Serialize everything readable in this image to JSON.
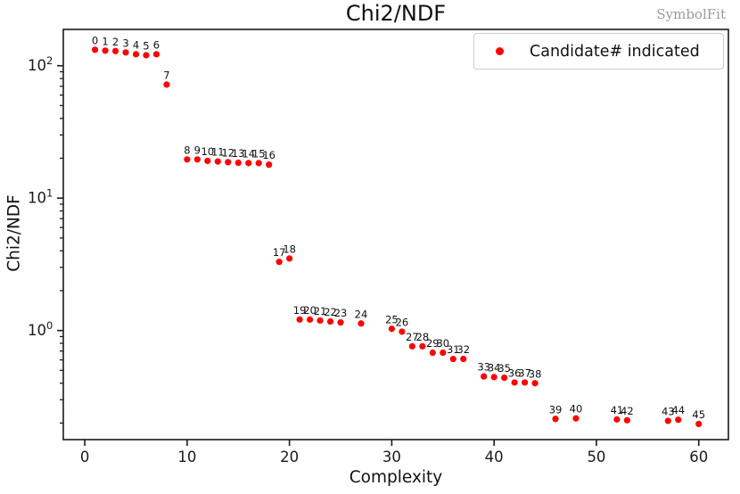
{
  "watermark": {
    "text": "SymbolFit"
  },
  "chart_data": {
    "type": "scatter",
    "title": "Chi2/NDF",
    "xlabel": "Complexity",
    "ylabel": "Chi2/NDF",
    "y_scale": "log",
    "xlim": [
      -2.1,
      62.9
    ],
    "ylim": [
      0.15,
      188
    ],
    "grid": false,
    "legend": {
      "label": "Candidate# indicated",
      "position": "upper right",
      "marker_color": "#ff0000"
    },
    "marker": {
      "color": "#ff0000",
      "radius": 3.6
    },
    "axis_color": "#1a1a1a",
    "x_ticks": [
      0,
      10,
      20,
      30,
      40,
      50,
      60
    ],
    "y_ticks": [
      {
        "value": 100,
        "base": "10",
        "exponent": "2"
      },
      {
        "value": 10,
        "base": "10",
        "exponent": "1"
      },
      {
        "value": 1,
        "base": "10",
        "exponent": "0"
      }
    ],
    "y_minor_ticks": [
      0.2,
      0.3,
      0.4,
      0.5,
      0.6,
      0.7,
      0.8,
      0.9,
      2,
      3,
      4,
      5,
      6,
      7,
      8,
      9,
      20,
      30,
      40,
      50,
      60,
      70,
      80,
      90
    ],
    "points": [
      {
        "candidate": 0,
        "x": 1,
        "y": 132
      },
      {
        "candidate": 1,
        "x": 2,
        "y": 130
      },
      {
        "candidate": 2,
        "x": 3,
        "y": 129
      },
      {
        "candidate": 3,
        "x": 4,
        "y": 126
      },
      {
        "candidate": 4,
        "x": 5,
        "y": 122
      },
      {
        "candidate": 5,
        "x": 6,
        "y": 120
      },
      {
        "candidate": 6,
        "x": 7,
        "y": 122
      },
      {
        "candidate": 7,
        "x": 8,
        "y": 72
      },
      {
        "candidate": 8,
        "x": 10,
        "y": 19.6
      },
      {
        "candidate": 9,
        "x": 11,
        "y": 19.6
      },
      {
        "candidate": 10,
        "x": 12,
        "y": 19.1
      },
      {
        "candidate": 11,
        "x": 13,
        "y": 18.9
      },
      {
        "candidate": 12,
        "x": 14,
        "y": 18.7
      },
      {
        "candidate": 13,
        "x": 15,
        "y": 18.5
      },
      {
        "candidate": 14,
        "x": 16,
        "y": 18.4
      },
      {
        "candidate": 15,
        "x": 17,
        "y": 18.4
      },
      {
        "candidate": 16,
        "x": 18,
        "y": 17.9
      },
      {
        "candidate": 17,
        "x": 19,
        "y": 3.3
      },
      {
        "candidate": 18,
        "x": 20,
        "y": 3.5
      },
      {
        "candidate": 19,
        "x": 21,
        "y": 1.21
      },
      {
        "candidate": 20,
        "x": 22,
        "y": 1.21
      },
      {
        "candidate": 21,
        "x": 23,
        "y": 1.19
      },
      {
        "candidate": 22,
        "x": 24,
        "y": 1.17
      },
      {
        "candidate": 23,
        "x": 25,
        "y": 1.15
      },
      {
        "candidate": 24,
        "x": 27,
        "y": 1.13
      },
      {
        "candidate": 25,
        "x": 30,
        "y": 1.03
      },
      {
        "candidate": 26,
        "x": 31,
        "y": 0.98
      },
      {
        "candidate": 27,
        "x": 32,
        "y": 0.76
      },
      {
        "candidate": 28,
        "x": 33,
        "y": 0.76
      },
      {
        "candidate": 29,
        "x": 34,
        "y": 0.68
      },
      {
        "candidate": 30,
        "x": 35,
        "y": 0.68
      },
      {
        "candidate": 31,
        "x": 36,
        "y": 0.61
      },
      {
        "candidate": 32,
        "x": 37,
        "y": 0.61
      },
      {
        "candidate": 33,
        "x": 39,
        "y": 0.45
      },
      {
        "candidate": 34,
        "x": 40,
        "y": 0.445
      },
      {
        "candidate": 35,
        "x": 41,
        "y": 0.44
      },
      {
        "candidate": 36,
        "x": 42,
        "y": 0.405
      },
      {
        "candidate": 37,
        "x": 43,
        "y": 0.405
      },
      {
        "candidate": 38,
        "x": 44,
        "y": 0.4
      },
      {
        "candidate": 39,
        "x": 46,
        "y": 0.215
      },
      {
        "candidate": 40,
        "x": 48,
        "y": 0.217
      },
      {
        "candidate": 41,
        "x": 52,
        "y": 0.213
      },
      {
        "candidate": 42,
        "x": 53,
        "y": 0.21
      },
      {
        "candidate": 43,
        "x": 57,
        "y": 0.208
      },
      {
        "candidate": 44,
        "x": 58,
        "y": 0.212
      },
      {
        "candidate": 45,
        "x": 60,
        "y": 0.197
      }
    ]
  }
}
